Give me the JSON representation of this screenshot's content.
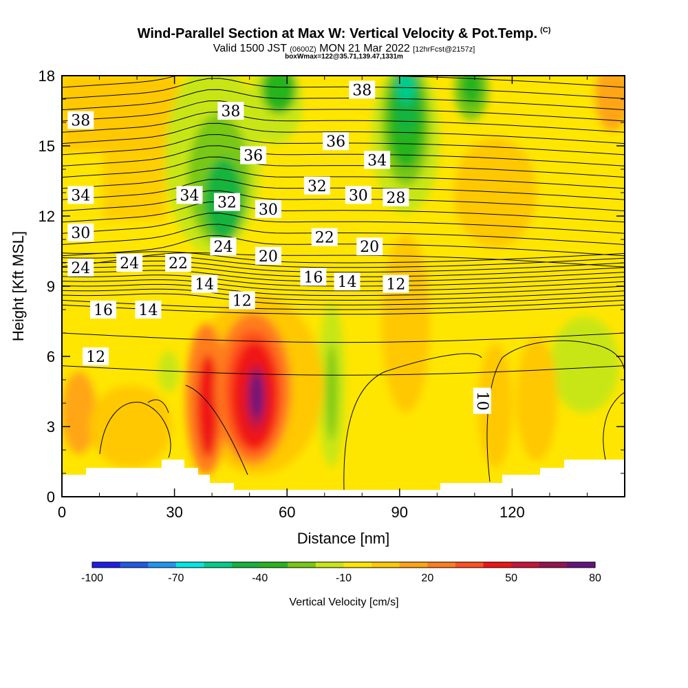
{
  "title": "Wind-Parallel Section at Max W: Vertical Velocity & Pot.Temp.",
  "title_tag": "(C)",
  "subtitle_valid": "Valid 1500 JST",
  "subtitle_z": "(0600Z)",
  "subtitle_date": "MON 21 Mar 2022",
  "subtitle_fcst": "[12hrFcst@2157z]",
  "subtitle_box": "boxWmax=122@35.71,139.47,1331m",
  "chart_data": {
    "type": "heatmap",
    "xlabel": "Distance [nm]",
    "ylabel": "Height [Kft MSL]",
    "xlim": [
      0,
      150
    ],
    "ylim": [
      0,
      18
    ],
    "x_ticks": [
      "0",
      "30",
      "60",
      "90",
      "120"
    ],
    "x_tick_values": [
      0,
      30,
      60,
      90,
      120
    ],
    "y_ticks": [
      "0",
      "3",
      "6",
      "9",
      "12",
      "15",
      "18"
    ],
    "y_tick_values": [
      0,
      3,
      6,
      9,
      12,
      15,
      18
    ],
    "colorbar": {
      "label": "Vertical Velocity [cm/s]",
      "min": -100,
      "max": 80,
      "step": 10,
      "tick_labels": [
        "-100",
        "-70",
        "-40",
        "-10",
        "20",
        "50",
        "80"
      ],
      "tick_values": [
        -100,
        -70,
        -40,
        -10,
        20,
        50,
        80
      ],
      "colors": [
        "#1e1ee6",
        "#1e5ae6",
        "#1e96f0",
        "#00e6e6",
        "#00cc8c",
        "#14b43c",
        "#28b41e",
        "#78c814",
        "#c8e614",
        "#ffe600",
        "#ffc800",
        "#ffa514",
        "#ff7d1e",
        "#ff501e",
        "#f01414",
        "#c8143c",
        "#961450",
        "#64147d"
      ]
    },
    "field": "vertical velocity (cm/s), filled contours",
    "updraft_max_cm_s": 80,
    "updraft_center": {
      "x_nm": 52,
      "z_kft": 4.5
    },
    "isentrope_labels": [
      {
        "x": 5,
        "z": 16.1,
        "text": "38"
      },
      {
        "x": 45,
        "z": 16.5,
        "text": "38"
      },
      {
        "x": 80,
        "z": 17.4,
        "text": "38"
      },
      {
        "x": 51,
        "z": 14.6,
        "text": "36"
      },
      {
        "x": 73,
        "z": 15.2,
        "text": "36"
      },
      {
        "x": 84,
        "z": 14.4,
        "text": "34"
      },
      {
        "x": 5,
        "z": 12.9,
        "text": "34"
      },
      {
        "x": 34,
        "z": 12.9,
        "text": "34"
      },
      {
        "x": 44,
        "z": 12.6,
        "text": "32"
      },
      {
        "x": 68,
        "z": 13.3,
        "text": "32"
      },
      {
        "x": 79,
        "z": 12.9,
        "text": "30"
      },
      {
        "x": 55,
        "z": 12.3,
        "text": "30"
      },
      {
        "x": 89,
        "z": 12.8,
        "text": "28"
      },
      {
        "x": 5,
        "z": 11.3,
        "text": "30"
      },
      {
        "x": 43,
        "z": 10.7,
        "text": "24"
      },
      {
        "x": 70,
        "z": 11.1,
        "text": "22"
      },
      {
        "x": 82,
        "z": 10.7,
        "text": "20"
      },
      {
        "x": 55,
        "z": 10.3,
        "text": "20"
      },
      {
        "x": 5,
        "z": 9.8,
        "text": "24"
      },
      {
        "x": 18,
        "z": 10.0,
        "text": "24"
      },
      {
        "x": 31,
        "z": 10.0,
        "text": "22"
      },
      {
        "x": 38,
        "z": 9.1,
        "text": "14"
      },
      {
        "x": 67,
        "z": 9.4,
        "text": "16"
      },
      {
        "x": 76,
        "z": 9.2,
        "text": "14"
      },
      {
        "x": 89,
        "z": 9.1,
        "text": "12"
      },
      {
        "x": 48,
        "z": 8.4,
        "text": "12"
      },
      {
        "x": 11,
        "z": 8.0,
        "text": "16"
      },
      {
        "x": 23,
        "z": 8.0,
        "text": "14"
      },
      {
        "x": 9,
        "z": 6.0,
        "text": "12"
      },
      {
        "x": 112,
        "z": 4.1,
        "text": "10"
      }
    ],
    "grid": false,
    "legend": "colorbar-bottom"
  }
}
